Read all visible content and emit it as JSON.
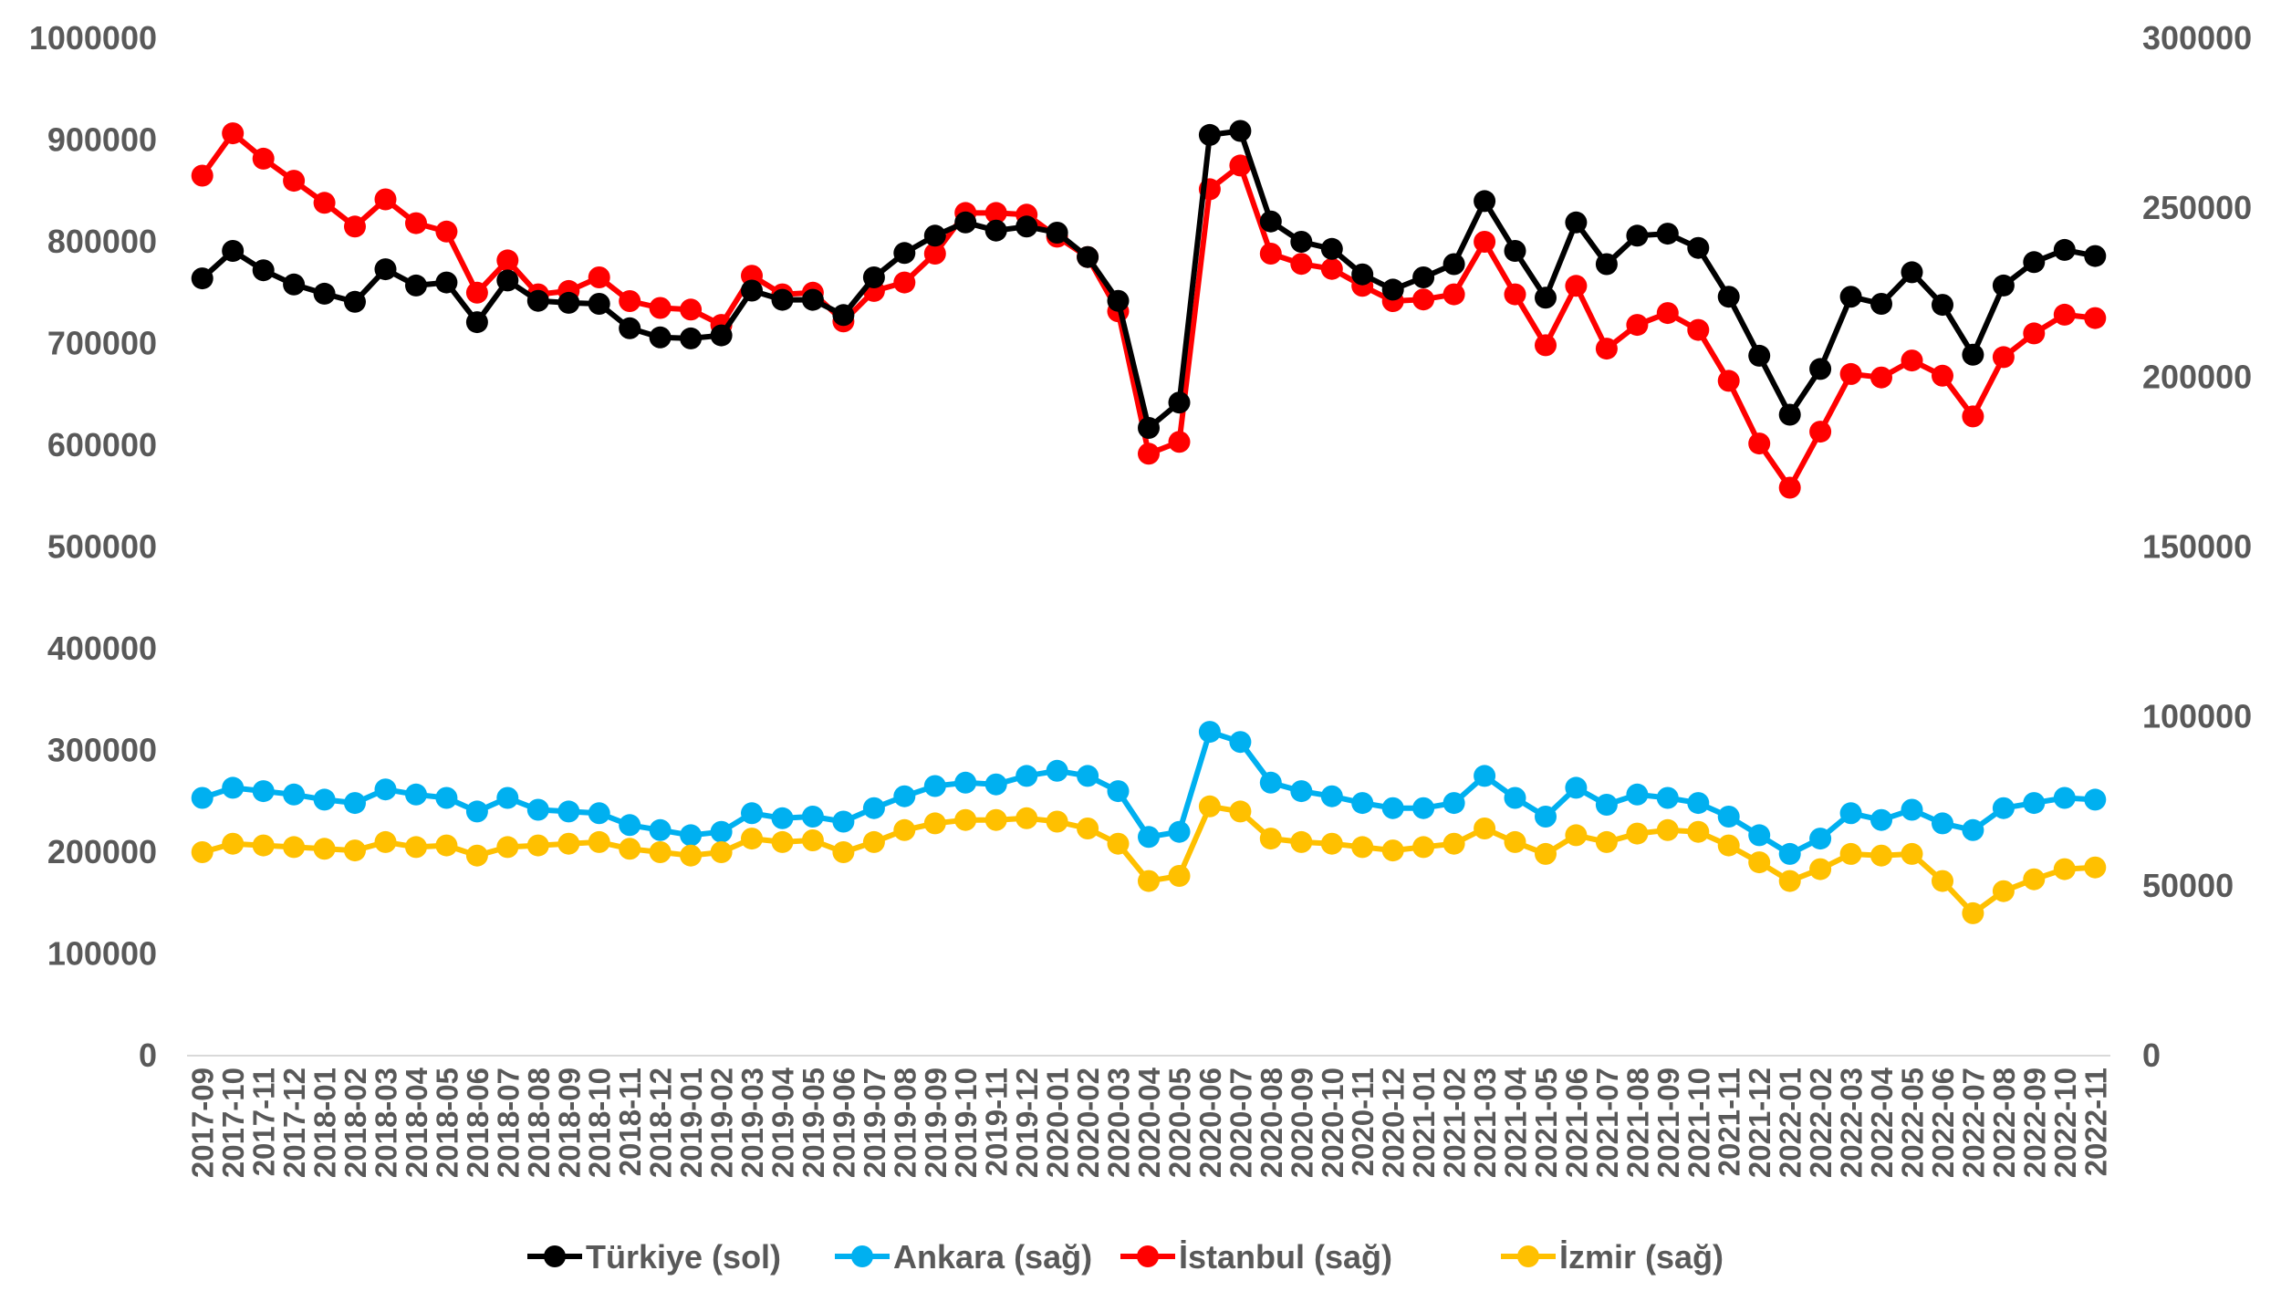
{
  "chart_data": {
    "type": "line",
    "title": "",
    "xlabel": "",
    "ylabel": "",
    "left_axis": {
      "ylim": [
        0,
        1000000
      ],
      "ticks": [
        "0",
        "100000",
        "200000",
        "300000",
        "400000",
        "500000",
        "600000",
        "700000",
        "800000",
        "900000",
        "1000000"
      ]
    },
    "right_axis": {
      "ylim": [
        0,
        300000
      ],
      "ticks": [
        "0",
        "50000",
        "100000",
        "150000",
        "200000",
        "250000",
        "300000"
      ]
    },
    "grid": false,
    "legend_position": "bottom",
    "x": [
      "2017-09",
      "2017-10",
      "2017-11",
      "2017-12",
      "2018-01",
      "2018-02",
      "2018-03",
      "2018-04",
      "2018-05",
      "2018-06",
      "2018-07",
      "2018-08",
      "2018-09",
      "2018-10",
      "2018-11",
      "2018-12",
      "2019-01",
      "2019-02",
      "2019-03",
      "2019-04",
      "2019-05",
      "2019-06",
      "2019-07",
      "2019-08",
      "2019-09",
      "2019-10",
      "2019-11",
      "2019-12",
      "2020-01",
      "2020-02",
      "2020-03",
      "2020-04",
      "2020-05",
      "2020-06",
      "2020-07",
      "2020-08",
      "2020-09",
      "2020-10",
      "2020-11",
      "2020-12",
      "2021-01",
      "2021-02",
      "2021-03",
      "2021-04",
      "2021-05",
      "2021-06",
      "2021-07",
      "2021-08",
      "2021-09",
      "2021-10",
      "2021-11",
      "2021-12",
      "2022-01",
      "2022-02",
      "2022-03",
      "2022-04",
      "2022-05",
      "2022-06",
      "2022-07",
      "2022-08",
      "2022-09",
      "2022-10",
      "2022-11"
    ],
    "series": [
      {
        "name": "Türkiye (sol)",
        "axis": "left",
        "color": "#000000",
        "values": [
          764000,
          791000,
          772000,
          758000,
          749000,
          741000,
          773000,
          757000,
          760000,
          721000,
          762000,
          742000,
          740000,
          739000,
          715000,
          706000,
          705000,
          708000,
          752000,
          743000,
          743000,
          728000,
          765000,
          789000,
          806000,
          819000,
          811000,
          815000,
          809000,
          785000,
          742000,
          617000,
          642000,
          905000,
          909000,
          820000,
          800000,
          793000,
          768000,
          753000,
          765000,
          778000,
          840000,
          791000,
          745000,
          819000,
          778000,
          806000,
          808000,
          794000,
          746000,
          688000,
          630000,
          675000,
          746000,
          739000,
          770000,
          738000,
          689000,
          757000,
          780000,
          792000,
          786000
        ]
      },
      {
        "name": "Ankara (sağ)",
        "axis": "right",
        "color": "#00B0F0",
        "values": [
          76000,
          79000,
          78000,
          77000,
          75500,
          74500,
          78500,
          77000,
          76000,
          72000,
          76000,
          72500,
          72000,
          71500,
          68000,
          66500,
          65000,
          66000,
          71500,
          70000,
          70500,
          69000,
          73000,
          76500,
          79500,
          80500,
          80000,
          82500,
          84000,
          82500,
          78000,
          64500,
          66000,
          95500,
          92500,
          80500,
          78000,
          76500,
          74500,
          73000,
          73000,
          74500,
          82500,
          76000,
          70500,
          79000,
          74000,
          77000,
          76000,
          74500,
          70500,
          65000,
          59500,
          64000,
          71500,
          69500,
          72500,
          68500,
          66500,
          73000,
          74500,
          76000,
          75500
        ]
      },
      {
        "name": "İstanbul (sağ)",
        "axis": "right",
        "color": "#FF0000",
        "values": [
          259500,
          272000,
          264500,
          258000,
          251500,
          244500,
          252500,
          245500,
          243000,
          225000,
          234500,
          224500,
          225500,
          229500,
          222500,
          220500,
          220000,
          215500,
          230000,
          224500,
          225000,
          216500,
          225500,
          228000,
          236500,
          248500,
          248500,
          248000,
          241500,
          235500,
          219500,
          177500,
          181000,
          255500,
          262500,
          236500,
          233500,
          232000,
          227000,
          222500,
          223000,
          224500,
          240000,
          224500,
          209500,
          227000,
          208500,
          215500,
          219000,
          214000,
          199000,
          180500,
          167500,
          184000,
          201000,
          200000,
          205000,
          200500,
          188500,
          206000,
          213000,
          218500,
          217500
        ]
      },
      {
        "name": "İzmir (sağ)",
        "axis": "right",
        "color": "#FFC000",
        "values": [
          60000,
          62500,
          62000,
          61500,
          61000,
          60500,
          63000,
          61500,
          62000,
          59000,
          61500,
          62000,
          62500,
          63000,
          61000,
          60000,
          59000,
          60000,
          64000,
          63000,
          63500,
          60000,
          63000,
          66500,
          68500,
          69500,
          69500,
          70000,
          69000,
          67000,
          62500,
          51500,
          53000,
          73500,
          72000,
          64000,
          63000,
          62500,
          61500,
          60500,
          61500,
          62500,
          67000,
          63000,
          59500,
          65000,
          63000,
          65500,
          66500,
          66000,
          62000,
          57000,
          51500,
          55000,
          59500,
          59000,
          59500,
          51500,
          42000,
          48500,
          52000,
          55000,
          55500
        ]
      }
    ]
  }
}
